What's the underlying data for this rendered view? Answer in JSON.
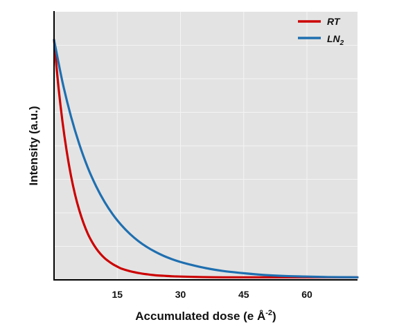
{
  "chart_data": {
    "type": "line",
    "xlabel": "Accumulated dose (e Å",
    "xlabel_sup": "-2",
    "xlabel_end": ")",
    "ylabel": "Intensity (a.u.)",
    "xlim": [
      0,
      72
    ],
    "ylim": [
      0,
      1.05
    ],
    "xticks": [
      15,
      30,
      45,
      60
    ],
    "grid": true,
    "y_ticks_labeled": false,
    "legend_position": "top-right",
    "series": [
      {
        "name": "RT",
        "color": "#cc0000",
        "x": [
          0,
          1,
          2,
          3,
          4,
          5,
          6,
          7,
          8,
          9,
          10,
          11,
          12,
          13,
          14,
          15,
          16,
          18,
          20,
          22,
          24,
          26,
          28,
          30,
          35,
          40,
          45,
          50,
          55,
          60,
          65,
          72
        ],
        "y": [
          0.94,
          0.763,
          0.62,
          0.504,
          0.409,
          0.333,
          0.272,
          0.222,
          0.181,
          0.149,
          0.123,
          0.102,
          0.085,
          0.072,
          0.061,
          0.052,
          0.044,
          0.034,
          0.027,
          0.022,
          0.018,
          0.016,
          0.014,
          0.013,
          0.011,
          0.01,
          0.01,
          0.01,
          0.01,
          0.01,
          0.01,
          0.01
        ]
      },
      {
        "name": "LN",
        "name_sub": "2",
        "color": "#1f6fb0",
        "x": [
          0,
          2,
          4,
          6,
          8,
          10,
          12,
          14,
          16,
          18,
          20,
          22,
          24,
          26,
          28,
          30,
          33,
          36,
          40,
          45,
          50,
          55,
          60,
          65,
          72
        ],
        "y": [
          0.94,
          0.775,
          0.641,
          0.531,
          0.44,
          0.366,
          0.305,
          0.255,
          0.214,
          0.18,
          0.152,
          0.129,
          0.11,
          0.094,
          0.081,
          0.07,
          0.057,
          0.046,
          0.035,
          0.026,
          0.019,
          0.015,
          0.013,
          0.011,
          0.01
        ]
      }
    ]
  }
}
